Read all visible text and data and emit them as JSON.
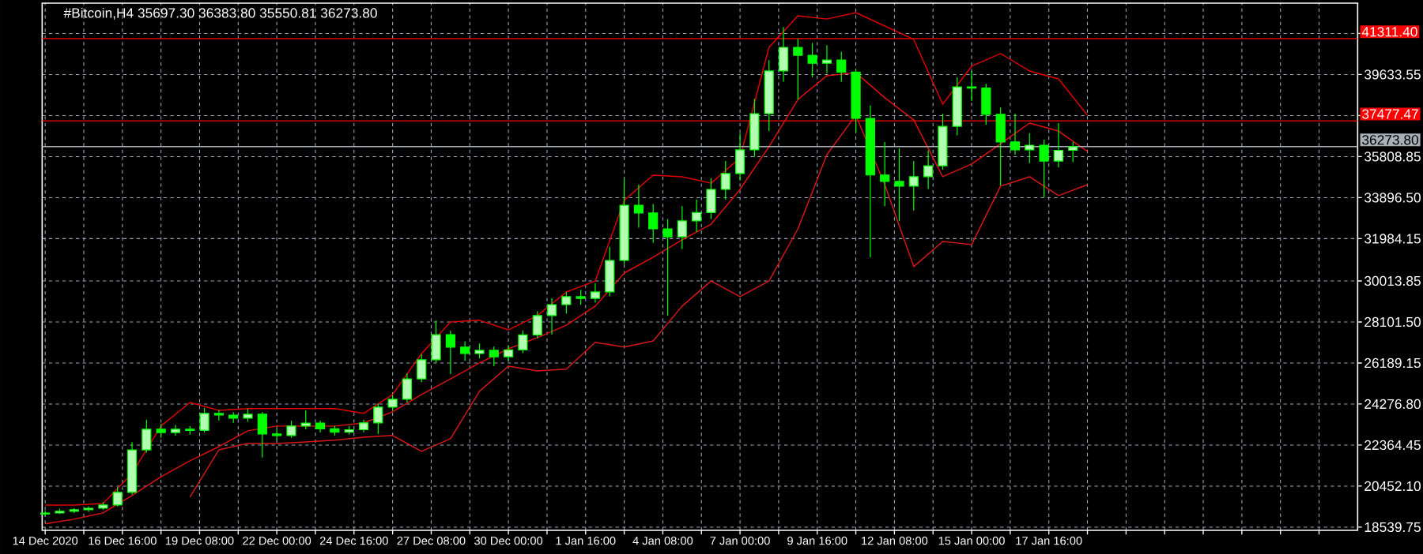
{
  "chart_data": {
    "type": "candlestick",
    "title": "#Bitcoin,H4  35697.30 36383.80 35550.81 36273.80",
    "color": "#00ff00",
    "grid": true,
    "xlim": [
      "2020-12-13T21:30",
      "2021-01-28T08:00"
    ],
    "ylim": [
      18390,
      42960
    ],
    "yticks": [
      18539.75,
      {
        "value": 20452.1,
        "label": "20452.10"
      },
      22364.45,
      {
        "value": 24276.8,
        "label": "24276.80"
      },
      26189.15,
      {
        "value": 28101.5,
        "label": "28101.50"
      },
      30013.85,
      31984.15,
      {
        "value": 33896.5,
        "label": "33896.50"
      },
      35808.85,
      {
        "value": 37721.2,
        "label": null
      },
      39633.55,
      {
        "value": 41545.9,
        "label": null
      }
    ],
    "xticks": [
      {
        "value": "2020-12-14T00:00",
        "label": "14 Dec 2020"
      },
      {
        "value": "2020-12-15T08:00",
        "label": null
      },
      {
        "value": "2020-12-16T16:00",
        "label": "16 Dec 16:00"
      },
      {
        "value": "2020-12-18T00:00",
        "label": null
      },
      {
        "value": "2020-12-19T08:00",
        "label": "19 Dec 08:00"
      },
      {
        "value": "2020-12-20T16:00",
        "label": null
      },
      {
        "value": "2020-12-22T00:00",
        "label": "22 Dec 00:00"
      },
      {
        "value": "2020-12-23T08:00",
        "label": null
      },
      {
        "value": "2020-12-24T16:00",
        "label": "24 Dec 16:00"
      },
      {
        "value": "2020-12-26T00:00",
        "label": null
      },
      {
        "value": "2020-12-27T08:00",
        "label": "27 Dec 08:00"
      },
      {
        "value": "2020-12-28T16:00",
        "label": null
      },
      {
        "value": "2020-12-30T00:00",
        "label": "30 Dec 00:00"
      },
      {
        "value": "2020-12-31T08:00",
        "label": null
      },
      {
        "value": "2021-01-01T16:00",
        "label": "1 Jan 16:00"
      },
      {
        "value": "2021-01-03T00:00",
        "label": null
      },
      {
        "value": "2021-01-04T08:00",
        "label": "4 Jan 08:00"
      },
      {
        "value": "2021-01-05T16:00",
        "label": null
      },
      {
        "value": "2021-01-07T00:00",
        "label": "7 Jan 00:00"
      },
      {
        "value": "2021-01-08T08:00",
        "label": null
      },
      {
        "value": "2021-01-09T16:00",
        "label": "9 Jan 16:00"
      },
      {
        "value": "2021-01-11T00:00",
        "label": null
      },
      {
        "value": "2021-01-12T08:00",
        "label": "12 Jan 08:00"
      },
      {
        "value": "2021-01-13T16:00",
        "label": null
      },
      {
        "value": "2021-01-15T00:00",
        "label": "15 Jan 00:00"
      },
      {
        "value": "2021-01-16T08:00",
        "label": null
      },
      {
        "value": "2021-01-17T16:00",
        "label": "17 Jan 16:00"
      },
      {
        "value": "2021-01-19T00:00",
        "label": null
      },
      {
        "value": "2021-01-20T08:00",
        "label": null
      },
      {
        "value": "2021-01-21T16:00",
        "label": null
      },
      {
        "value": "2021-01-23T00:00",
        "label": null
      },
      {
        "value": "2021-01-24T08:00",
        "label": null
      },
      {
        "value": "2021-01-25T16:00",
        "label": null
      },
      {
        "value": "2021-01-27T00:00",
        "label": null
      }
    ],
    "ref_lines": [
      {
        "axis": "y",
        "value": 41311.4,
        "label": "41311.40",
        "color": "#ff0000"
      },
      {
        "axis": "y",
        "value": 37477.47,
        "label": "37477.47",
        "color": "#ff0000"
      },
      {
        "axis": "y",
        "value": 36273.8,
        "label": "36273.80",
        "color": "#a8b0b8"
      }
    ],
    "x": [
      "2020-12-14T00:00",
      "2020-12-14T12:00",
      "2020-12-15T00:00",
      "2020-12-15T12:00",
      "2020-12-16T00:00",
      "2020-12-16T12:00",
      "2020-12-17T00:00",
      "2020-12-17T12:00",
      "2020-12-18T00:00",
      "2020-12-18T12:00",
      "2020-12-19T00:00",
      "2020-12-19T12:00",
      "2020-12-20T00:00",
      "2020-12-20T12:00",
      "2020-12-21T00:00",
      "2020-12-21T12:00",
      "2020-12-22T00:00",
      "2020-12-22T12:00",
      "2020-12-23T00:00",
      "2020-12-23T12:00",
      "2020-12-24T00:00",
      "2020-12-24T12:00",
      "2020-12-25T00:00",
      "2020-12-25T12:00",
      "2020-12-26T00:00",
      "2020-12-26T12:00",
      "2020-12-27T00:00",
      "2020-12-27T12:00",
      "2020-12-28T00:00",
      "2020-12-28T12:00",
      "2020-12-29T00:00",
      "2020-12-29T12:00",
      "2020-12-30T00:00",
      "2020-12-30T12:00",
      "2020-12-31T00:00",
      "2020-12-31T12:00",
      "2021-01-01T00:00",
      "2021-01-01T12:00",
      "2021-01-02T00:00",
      "2021-01-02T12:00",
      "2021-01-03T00:00",
      "2021-01-03T12:00",
      "2021-01-04T00:00",
      "2021-01-04T12:00",
      "2021-01-05T00:00",
      "2021-01-05T12:00",
      "2021-01-06T00:00",
      "2021-01-06T12:00",
      "2021-01-07T00:00",
      "2021-01-07T12:00",
      "2021-01-08T00:00",
      "2021-01-08T12:00",
      "2021-01-09T00:00",
      "2021-01-09T12:00",
      "2021-01-10T00:00",
      "2021-01-10T12:00",
      "2021-01-11T00:00",
      "2021-01-11T12:00",
      "2021-01-12T00:00",
      "2021-01-12T12:00",
      "2021-01-13T00:00",
      "2021-01-13T12:00",
      "2021-01-14T00:00",
      "2021-01-14T12:00",
      "2021-01-15T00:00",
      "2021-01-15T12:00",
      "2021-01-16T00:00",
      "2021-01-16T12:00",
      "2021-01-17T00:00",
      "2021-01-17T12:00",
      "2021-01-18T00:00",
      "2021-01-18T12:00"
    ],
    "ohlc": [
      [
        19150,
        19300,
        19050,
        19200
      ],
      [
        19200,
        19400,
        19150,
        19280
      ],
      [
        19280,
        19420,
        19200,
        19350
      ],
      [
        19350,
        19500,
        19250,
        19420
      ],
      [
        19420,
        19700,
        19350,
        19570
      ],
      [
        19570,
        20400,
        19500,
        20160
      ],
      [
        20160,
        22500,
        20050,
        22140
      ],
      [
        22140,
        23550,
        22000,
        23100
      ],
      [
        23100,
        23350,
        22700,
        22950
      ],
      [
        22950,
        23300,
        22800,
        23100
      ],
      [
        23100,
        23250,
        22850,
        23050
      ],
      [
        23050,
        24100,
        22950,
        23840
      ],
      [
        23840,
        24000,
        23500,
        23760
      ],
      [
        23760,
        23900,
        23400,
        23620
      ],
      [
        23620,
        24050,
        23450,
        23800
      ],
      [
        23800,
        23900,
        21780,
        22880
      ],
      [
        22880,
        23100,
        22600,
        22810
      ],
      [
        22810,
        23500,
        22700,
        23250
      ],
      [
        23250,
        23980,
        23100,
        23390
      ],
      [
        23390,
        23500,
        22950,
        23120
      ],
      [
        23120,
        23250,
        22800,
        22960
      ],
      [
        22960,
        23250,
        22850,
        23080
      ],
      [
        23080,
        23550,
        22950,
        23400
      ],
      [
        23400,
        24300,
        22880,
        24130
      ],
      [
        24130,
        24700,
        23950,
        24500
      ],
      [
        24500,
        25700,
        24350,
        25450
      ],
      [
        25450,
        26600,
        25300,
        26340
      ],
      [
        26340,
        28170,
        26200,
        27510
      ],
      [
        27510,
        27700,
        25670,
        26930
      ],
      [
        26930,
        27200,
        26300,
        26630
      ],
      [
        26630,
        27100,
        26400,
        26780
      ],
      [
        26780,
        26950,
        26040,
        26480
      ],
      [
        26480,
        27000,
        26300,
        26800
      ],
      [
        26800,
        27700,
        26650,
        27500
      ],
      [
        27500,
        28600,
        27350,
        28400
      ],
      [
        28400,
        29200,
        27510,
        28910
      ],
      [
        28910,
        29500,
        28500,
        29280
      ],
      [
        29280,
        29600,
        28900,
        29200
      ],
      [
        29200,
        29900,
        29000,
        29500
      ],
      [
        29500,
        31600,
        29300,
        30970
      ],
      [
        30970,
        34790,
        30800,
        33540
      ],
      [
        33540,
        34500,
        32500,
        33180
      ],
      [
        33180,
        33600,
        31800,
        32440
      ],
      [
        32440,
        32900,
        28400,
        32070
      ],
      [
        32070,
        33500,
        31500,
        32810
      ],
      [
        32810,
        33800,
        32300,
        33200
      ],
      [
        33200,
        34800,
        32900,
        34280
      ],
      [
        34280,
        35600,
        33800,
        35020
      ],
      [
        35020,
        36900,
        34700,
        36120
      ],
      [
        36120,
        38500,
        35800,
        37810
      ],
      [
        37810,
        40300,
        37000,
        39800
      ],
      [
        39800,
        41850,
        39300,
        40900
      ],
      [
        40900,
        41300,
        38470,
        40530
      ],
      [
        40530,
        41100,
        39500,
        40160
      ],
      [
        40160,
        41000,
        39700,
        40310
      ],
      [
        40310,
        40700,
        39300,
        39750
      ],
      [
        39750,
        39900,
        36900,
        37590
      ],
      [
        37590,
        38200,
        31120,
        34950
      ],
      [
        34950,
        36490,
        33500,
        34650
      ],
      [
        34650,
        36200,
        32810,
        34430
      ],
      [
        34430,
        35600,
        33300,
        34870
      ],
      [
        34870,
        36100,
        34300,
        35380
      ],
      [
        35380,
        37800,
        35200,
        37220
      ],
      [
        37220,
        39500,
        36800,
        39060
      ],
      [
        39060,
        39800,
        38400,
        39000
      ],
      [
        39000,
        39200,
        37300,
        37780
      ],
      [
        37780,
        38100,
        34450,
        36490
      ],
      [
        36490,
        37810,
        35900,
        36120
      ],
      [
        36120,
        36900,
        35500,
        36340
      ],
      [
        36340,
        36600,
        33910,
        35600
      ],
      [
        35600,
        37370,
        35300,
        36100
      ],
      [
        36100,
        36500,
        35550,
        36273.8
      ]
    ],
    "series": [
      {
        "type": "line",
        "color": "#e00000",
        "x": [
          "2020-12-14T00:00",
          "2020-12-15T00:00",
          "2020-12-16T00:00",
          "2020-12-17T00:00",
          "2020-12-18T00:00",
          "2020-12-19T00:00",
          "2020-12-20T00:00",
          "2020-12-21T00:00",
          "2020-12-22T00:00",
          "2020-12-23T00:00",
          "2020-12-24T00:00",
          "2020-12-25T00:00",
          "2020-12-26T00:00",
          "2020-12-27T00:00",
          "2020-12-28T00:00",
          "2020-12-29T00:00",
          "2020-12-30T00:00",
          "2020-12-31T00:00",
          "2021-01-01T00:00",
          "2021-01-02T00:00",
          "2021-01-03T00:00",
          "2021-01-04T00:00",
          "2021-01-05T00:00",
          "2021-01-06T00:00",
          "2021-01-07T00:00",
          "2021-01-08T00:00",
          "2021-01-09T00:00",
          "2021-01-10T00:00",
          "2021-01-11T00:00",
          "2021-01-13T00:00",
          "2021-01-14T00:00",
          "2021-01-15T00:00",
          "2021-01-16T00:00",
          "2021-01-17T00:00",
          "2021-01-18T00:00",
          "2021-01-19T00:00"
        ],
        "values": [
          19570,
          19570,
          19640,
          21040,
          23250,
          24350,
          23980,
          24060,
          24060,
          24060,
          24060,
          23840,
          24720,
          26630,
          28100,
          28180,
          27730,
          28400,
          29500,
          30010,
          33770,
          34940,
          34870,
          34570,
          35750,
          40900,
          42370,
          42220,
          42520,
          41270,
          38250,
          40020,
          40610,
          39800,
          39430,
          37740
        ]
      },
      {
        "type": "line",
        "color": "#e01010",
        "x": [
          "2020-12-14T00:00",
          "2020-12-15T00:00",
          "2020-12-16T00:00",
          "2020-12-17T00:00",
          "2020-12-18T00:00",
          "2020-12-19T00:00",
          "2020-12-20T00:00",
          "2020-12-21T00:00",
          "2020-12-22T00:00",
          "2020-12-23T00:00",
          "2020-12-24T00:00",
          "2020-12-25T00:00",
          "2020-12-26T00:00",
          "2020-12-27T00:00",
          "2020-12-28T00:00",
          "2020-12-29T00:00",
          "2020-12-30T00:00",
          "2020-12-31T00:00",
          "2021-01-01T00:00",
          "2021-01-02T00:00",
          "2021-01-03T00:00",
          "2021-01-04T00:00",
          "2021-01-05T00:00",
          "2021-01-06T00:00",
          "2021-01-07T00:00",
          "2021-01-08T00:00",
          "2021-01-09T00:00",
          "2021-01-10T00:00",
          "2021-01-11T00:00",
          "2021-01-12T00:00",
          "2021-01-13T00:00",
          "2021-01-14T00:00",
          "2021-01-15T00:00",
          "2021-01-16T00:00",
          "2021-01-17T00:00",
          "2021-01-18T00:00",
          "2021-01-19T00:00"
        ],
        "values": [
          18690,
          18910,
          19200,
          20010,
          20890,
          21630,
          22290,
          23030,
          23250,
          23250,
          23250,
          23390,
          23910,
          24720,
          25450,
          26190,
          26850,
          27370,
          27950,
          28840,
          30380,
          31120,
          31930,
          32660,
          34280,
          36270,
          38470,
          39580,
          39720,
          38550,
          37520,
          34870,
          35460,
          36410,
          37370,
          37000,
          36050
        ]
      },
      {
        "type": "line",
        "color": "#d81818",
        "x": [
          "2020-12-19T00:00",
          "2020-12-20T00:00",
          "2020-12-21T00:00",
          "2020-12-22T00:00",
          "2020-12-23T00:00",
          "2020-12-24T00:00",
          "2020-12-25T00:00",
          "2020-12-26T00:00",
          "2020-12-27T00:00",
          "2020-12-28T00:00",
          "2020-12-29T00:00",
          "2020-12-30T00:00",
          "2020-12-31T00:00",
          "2021-01-01T00:00",
          "2021-01-02T00:00",
          "2021-01-03T00:00",
          "2021-01-04T00:00",
          "2021-01-05T00:00",
          "2021-01-06T00:00",
          "2021-01-07T00:00",
          "2021-01-08T00:00",
          "2021-01-09T00:00",
          "2021-01-10T00:00",
          "2021-01-11T00:00",
          "2021-01-12T00:00",
          "2021-01-13T00:00",
          "2021-01-14T00:00",
          "2021-01-15T00:00",
          "2021-01-16T00:00",
          "2021-01-17T00:00",
          "2021-01-18T00:00",
          "2021-01-19T00:00"
        ],
        "values": [
          19940,
          22140,
          22440,
          22440,
          22510,
          22590,
          22730,
          22810,
          22070,
          22660,
          24870,
          26040,
          25820,
          25900,
          27150,
          26930,
          27220,
          28840,
          30010,
          29280,
          30010,
          32440,
          35900,
          37740,
          34500,
          30680,
          31850,
          31710,
          34430,
          34870,
          33990,
          34500
        ]
      }
    ]
  }
}
